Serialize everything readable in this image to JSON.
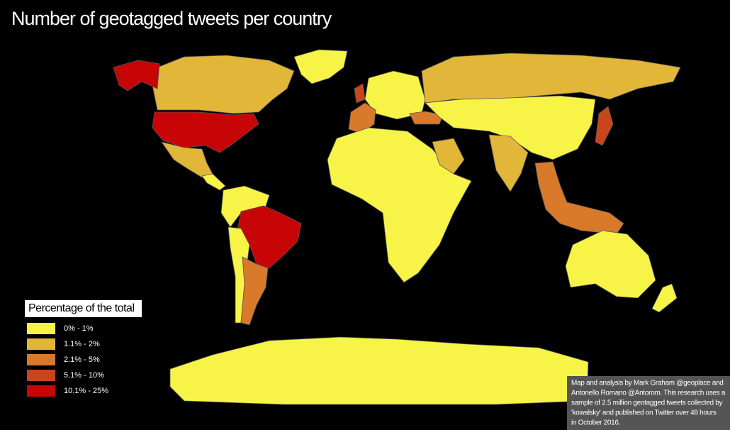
{
  "title": "Number of geotagged tweets per country",
  "legend": {
    "title": "Percentage of the total",
    "items": [
      {
        "label": "0% - 1%",
        "color": "#f8f447"
      },
      {
        "label": "1.1% - 2%",
        "color": "#e2b639"
      },
      {
        "label": "2.1% - 5%",
        "color": "#d9792a"
      },
      {
        "label": "5.1% - 10%",
        "color": "#c8461b"
      },
      {
        "label": "10.1% - 25%",
        "color": "#c70406"
      }
    ]
  },
  "credit": {
    "lines": [
      "Map and analysis by Mark Graham @geoplace and",
      "Antonello Romano @Antorom.  This research uses a",
      "sample of  2.5 million  geotagged tweets collected by",
      "'kowalsky' and published on Twitter over 48 hours",
      "in October 2016."
    ]
  }
}
